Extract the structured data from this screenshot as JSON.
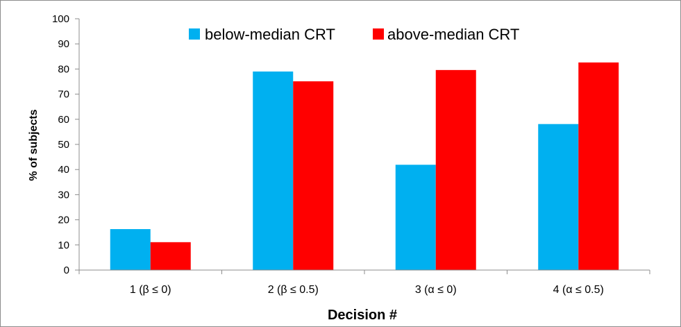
{
  "chart_data": {
    "type": "bar",
    "title": "",
    "xlabel": "Decision #",
    "ylabel": "% of subjects",
    "categories": [
      "1 (β ≤ 0)",
      "2 (β ≤ 0.5)",
      "3 (α ≤ 0)",
      "4 (α ≤ 0.5)"
    ],
    "series": [
      {
        "name": "below-median CRT",
        "color": "#00B0F0",
        "values": [
          16.3,
          79.0,
          41.9,
          58.1
        ]
      },
      {
        "name": "above-median CRT",
        "color": "#FF0000",
        "values": [
          11.1,
          75.1,
          79.6,
          82.6
        ]
      }
    ],
    "ylim": [
      0,
      100
    ],
    "yticks": [
      0,
      10,
      20,
      30,
      40,
      50,
      60,
      70,
      80,
      90,
      100
    ],
    "grid": false,
    "legend_position": "top-center"
  }
}
